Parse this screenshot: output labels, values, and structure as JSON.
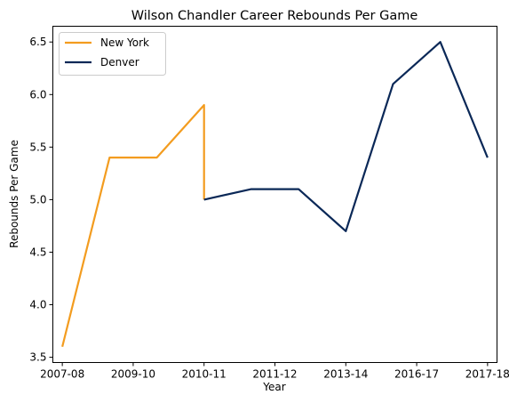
{
  "chart_data": {
    "type": "line",
    "title": "Wilson Chandler Career Rebounds Per Game",
    "xlabel": "Year",
    "ylabel": "Rebounds Per Game",
    "xticks": [
      "2007-08",
      "2009-10",
      "2010-11",
      "2011-12",
      "2013-14",
      "2016-17",
      "2017-18"
    ],
    "xlim": [
      -0.2,
      9.2
    ],
    "ylim": [
      3.45,
      6.65
    ],
    "yticks": [
      "3.5",
      "4.0",
      "4.5",
      "5.0",
      "5.5",
      "6.0",
      "6.5"
    ],
    "grid": false,
    "legend_position": "upper left",
    "series": [
      {
        "name": "New York",
        "color": "#F39C1F",
        "x": [
          0,
          1,
          2,
          3,
          3
        ],
        "y": [
          3.6,
          5.4,
          5.4,
          5.9,
          5.0
        ]
      },
      {
        "name": "Denver",
        "color": "#0A2857",
        "x": [
          3,
          4,
          5,
          6,
          7,
          8,
          9
        ],
        "y": [
          5.0,
          5.1,
          5.1,
          4.7,
          6.1,
          6.5,
          5.4
        ]
      }
    ],
    "xtick_positions": [
      0,
      1.5,
      3,
      4.5,
      6,
      7.5,
      9
    ]
  }
}
